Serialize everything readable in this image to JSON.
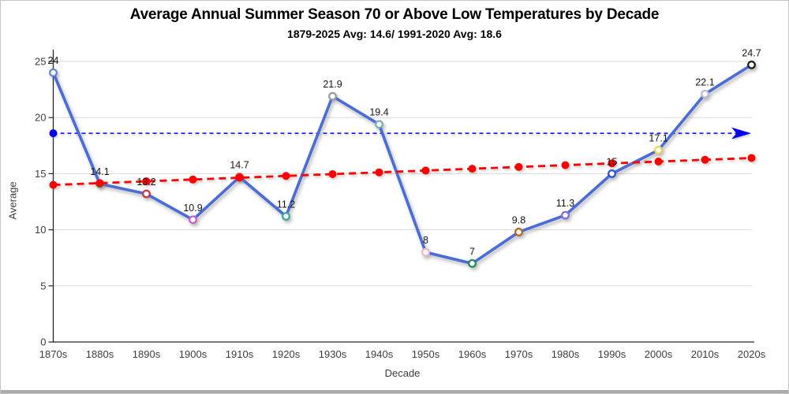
{
  "page": {
    "background": "#ffffff",
    "border_color": "#c6c6c6",
    "bottom_edge_color": "#ababab"
  },
  "chart_data": {
    "type": "line",
    "title": "Average Annual Summer Season 70 or Above Low Temperatures by Decade",
    "subtitle": "1879-2025 Avg: 14.6/ 1991-2020 Avg: 18.6",
    "xlabel": "Decade",
    "ylabel": "Average",
    "ylim": [
      0,
      25
    ],
    "yticks": [
      0,
      5,
      10,
      15,
      20,
      25
    ],
    "grid": "horizontal",
    "legend": "none",
    "categories": [
      "1870s",
      "1880s",
      "1890s",
      "1900s",
      "1910s",
      "1920s",
      "1930s",
      "1940s",
      "1950s",
      "1960s",
      "1970s",
      "1980s",
      "1990s",
      "2000s",
      "2010s",
      "2020s"
    ],
    "series": [
      {
        "name": "Average annual 70-or-above low temperatures",
        "color": "#4a6cd9",
        "line_style": "solid",
        "marker": "open-circle",
        "values": [
          24,
          14.1,
          13.2,
          10.9,
          14.7,
          11.2,
          21.9,
          19.4,
          8,
          7,
          9.8,
          11.3,
          15,
          17.1,
          22.1,
          24.7
        ],
        "labels": [
          "24",
          "14.1",
          "13.2",
          "10.9",
          "14.7",
          "11.2",
          "21.9",
          "19.4",
          "8",
          "7",
          "9.8",
          "11.3",
          "15",
          "17.1",
          "22.1",
          "24.7"
        ],
        "marker_colors": [
          "#5b83e0",
          "#3fae49",
          "#c93345",
          "#c85ecf",
          "#e04040",
          "#35a79c",
          "#9a9a9a",
          "#74aebc",
          "#f0b8c4",
          "#1e8a55",
          "#b5651d",
          "#7b68ee",
          "#2a4fd7",
          "#e3d94e",
          "#bcbad6",
          "#1a1a1a"
        ]
      }
    ],
    "reference_line": {
      "name": "1991-2020 average",
      "value": 18.6,
      "color": "#0000ee",
      "style": "dashed",
      "start_dot": true,
      "arrow_end": true
    },
    "trend_line": {
      "name": "linear trend",
      "start_value": 14.0,
      "end_value": 16.4,
      "color": "#fe0000",
      "style": "dashed",
      "dots_at_categories": true
    },
    "axis_color": "#262626",
    "gridline_color": "#d9d9d9",
    "tick_label_color": "#3d3d3d"
  }
}
